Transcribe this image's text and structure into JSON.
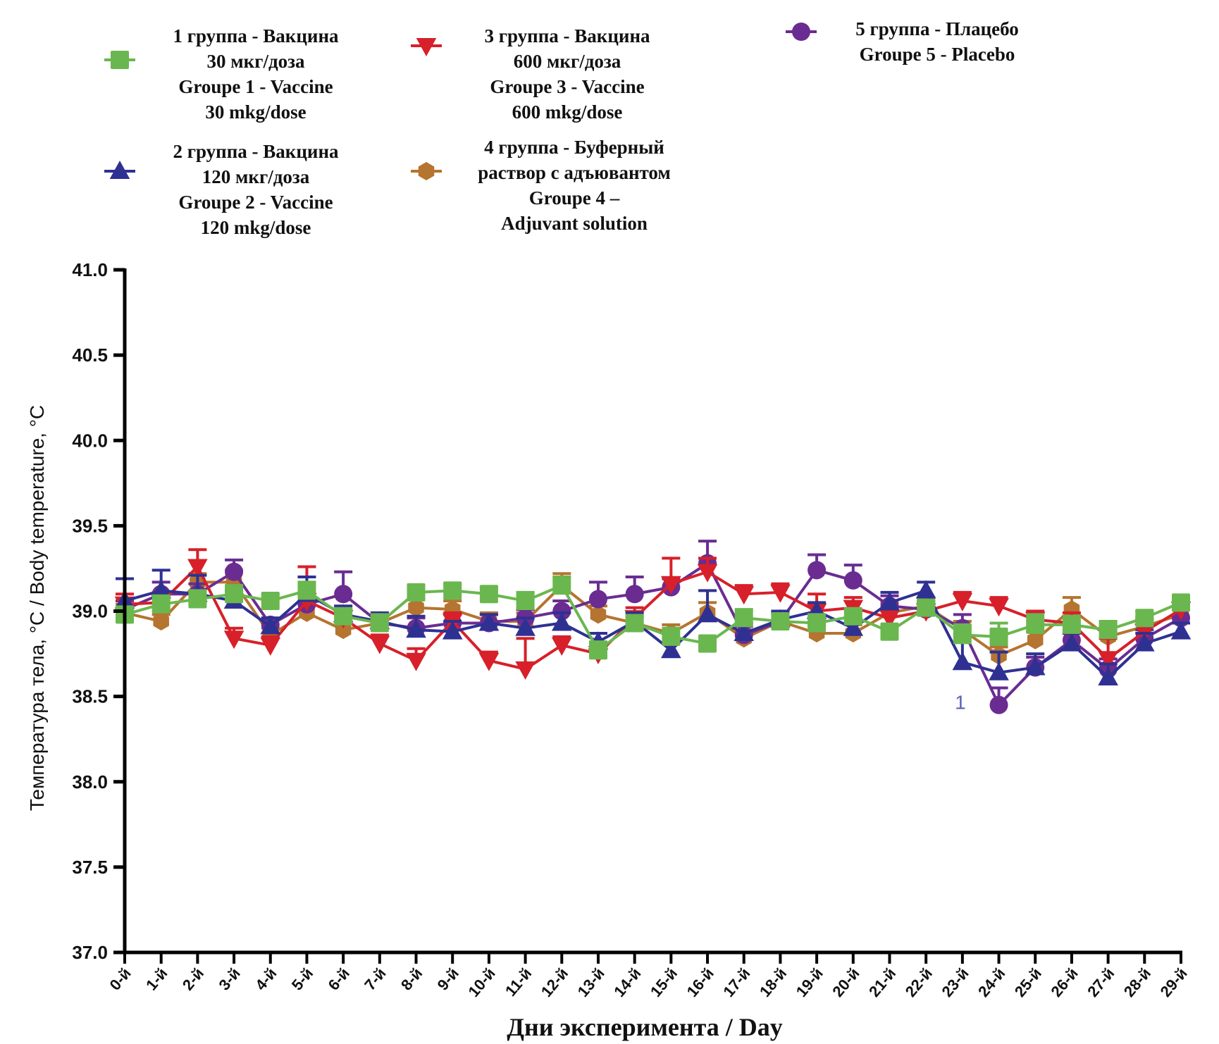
{
  "chart_data": {
    "type": "line",
    "title": "",
    "xlabel": "Дни эксперимента / Day",
    "ylabel": "Температура тела, °C / Body temperature, °C",
    "ylim": [
      37.0,
      41.0
    ],
    "yticks": [
      "37.0",
      "37.5",
      "38.0",
      "38.5",
      "39.0",
      "39.5",
      "40.0",
      "40.5",
      "41.0"
    ],
    "ytick_values": [
      37.0,
      37.5,
      38.0,
      38.5,
      39.0,
      39.5,
      40.0,
      40.5,
      41.0
    ],
    "categories": [
      "0-й",
      "1-й",
      "2-й",
      "3-й",
      "4-й",
      "5-й",
      "6-й",
      "7-й",
      "8-й",
      "9-й",
      "10-й",
      "11-й",
      "12-й",
      "13-й",
      "14-й",
      "15-й",
      "16-й",
      "17-й",
      "18-й",
      "19-й",
      "20-й",
      "21-й",
      "22-й",
      "23-й",
      "24-й",
      "25-й",
      "26-й",
      "27-й",
      "28-й",
      "29-й"
    ],
    "grid": false,
    "legend_position": "top",
    "annotations": [
      {
        "text": "1",
        "day_index": 23,
        "value": 38.45,
        "color": "#5b63b8"
      }
    ],
    "series": [
      {
        "name": "1 группа - Вакцина 30 мкг/доза / Groupe 1 - Vaccine 30 mkg/dose",
        "legend_lines": [
          "1 группа - Вакцина",
          "30 мкг/доза",
          "Groupe 1 - Vaccine",
          "30 mkg/dose"
        ],
        "color": "#6ab74f",
        "marker": "square",
        "values": [
          38.98,
          39.04,
          39.07,
          39.1,
          39.06,
          39.12,
          38.97,
          38.93,
          39.11,
          39.12,
          39.1,
          39.06,
          39.15,
          38.77,
          38.93,
          38.85,
          38.81,
          38.96,
          38.94,
          38.93,
          38.97,
          38.88,
          39.02,
          38.86,
          38.85,
          38.92,
          38.92,
          38.89,
          38.96,
          39.05
        ],
        "errors": [
          0.04,
          0.05,
          0.05,
          0.05,
          0.04,
          0.05,
          0.04,
          0.05,
          0.04,
          0.04,
          0.04,
          0.05,
          0.05,
          0.05,
          0.04,
          0.05,
          0.04,
          0.05,
          0.04,
          0.05,
          0.04,
          0.04,
          0.04,
          0.06,
          0.08,
          0.06,
          0.05,
          0.05,
          0.04,
          0.04
        ]
      },
      {
        "name": "2 группа - Вакцина 120 мкг/доза / Groupe 2 - Vaccine 120 mkg/dose",
        "legend_lines": [
          "2 группа - Вакцина",
          "120 мкг/доза",
          "Groupe 2 - Vaccine",
          "120 mkg/dose"
        ],
        "color": "#2e3192",
        "marker": "triangle-up",
        "values": [
          39.06,
          39.12,
          39.1,
          39.06,
          38.91,
          39.1,
          38.98,
          38.94,
          38.89,
          38.88,
          38.93,
          38.9,
          38.93,
          38.82,
          38.94,
          38.77,
          38.98,
          38.87,
          38.95,
          39.0,
          38.9,
          39.05,
          39.12,
          38.7,
          38.64,
          38.67,
          38.81,
          38.61,
          38.81,
          38.88
        ],
        "errors": [
          0.13,
          0.12,
          0.11,
          0.06,
          0.05,
          0.1,
          0.05,
          0.05,
          0.08,
          0.06,
          0.05,
          0.06,
          0.06,
          0.05,
          0.05,
          0.04,
          0.14,
          0.06,
          0.05,
          0.05,
          0.05,
          0.06,
          0.05,
          0.16,
          0.12,
          0.08,
          0.06,
          0.08,
          0.06,
          0.05
        ]
      },
      {
        "name": "3 группа - Вакцина 600 мкг/доза / Groupe 3 - Vaccine 600 mkg/dose",
        "legend_lines": [
          "3 группа - Вакцина",
          "600 мкг/доза",
          "Groupe 3 - Vaccine",
          "600 mkg/dose"
        ],
        "color": "#d7202a",
        "marker": "triangle-down",
        "values": [
          39.04,
          39.05,
          39.26,
          38.84,
          38.8,
          39.06,
          38.96,
          38.81,
          38.71,
          38.94,
          38.71,
          38.66,
          38.8,
          38.75,
          38.96,
          39.16,
          39.23,
          39.1,
          39.11,
          39.0,
          39.02,
          38.96,
          39.0,
          39.06,
          39.03,
          38.95,
          38.93,
          38.72,
          38.88,
          39.01
        ],
        "errors": [
          0.06,
          0.06,
          0.1,
          0.06,
          0.05,
          0.2,
          0.05,
          0.05,
          0.07,
          0.05,
          0.05,
          0.18,
          0.05,
          0.05,
          0.06,
          0.15,
          0.08,
          0.05,
          0.05,
          0.1,
          0.06,
          0.05,
          0.05,
          0.05,
          0.05,
          0.05,
          0.06,
          0.12,
          0.07,
          0.06
        ]
      },
      {
        "name": "4 группа - Буферный раствор с адъювантом / Groupe 4 – Adjuvant solution",
        "legend_lines": [
          "4 группа - Буферный",
          "раствор с адъювантом",
          "Groupe 4 –",
          "Adjuvant solution"
        ],
        "color": "#b5742f",
        "marker": "hexagon",
        "values": [
          38.99,
          38.94,
          39.17,
          39.17,
          38.86,
          38.99,
          38.89,
          38.93,
          39.02,
          39.01,
          38.94,
          38.94,
          39.15,
          38.98,
          38.93,
          38.87,
          38.99,
          38.84,
          38.94,
          38.87,
          38.87,
          38.99,
          39.03,
          38.89,
          38.74,
          38.83,
          39.01,
          38.85,
          38.91,
          38.98
        ],
        "errors": [
          0.05,
          0.04,
          0.05,
          0.07,
          0.04,
          0.05,
          0.05,
          0.05,
          0.05,
          0.05,
          0.05,
          0.05,
          0.07,
          0.05,
          0.04,
          0.05,
          0.06,
          0.05,
          0.05,
          0.05,
          0.05,
          0.06,
          0.05,
          0.05,
          0.05,
          0.05,
          0.07,
          0.06,
          0.05,
          0.05
        ]
      },
      {
        "name": "5 группа - Плацебо / Groupe 5 - Placebo",
        "legend_lines": [
          "5 группа - Плацебо",
          "Groupe 5 - Placebo"
        ],
        "color": "#6a2c91",
        "marker": "circle",
        "values": [
          39.01,
          39.1,
          39.1,
          39.23,
          38.92,
          39.04,
          39.1,
          38.93,
          38.9,
          38.93,
          38.93,
          38.96,
          39.0,
          39.07,
          39.1,
          39.14,
          39.28,
          38.86,
          38.94,
          39.24,
          39.18,
          39.03,
          39.01,
          38.9,
          38.45,
          38.67,
          38.83,
          38.66,
          38.84,
          38.96
        ],
        "errors": [
          0.05,
          0.07,
          0.06,
          0.07,
          0.04,
          0.06,
          0.13,
          0.05,
          0.06,
          0.05,
          0.05,
          0.05,
          0.06,
          0.1,
          0.1,
          0.05,
          0.13,
          0.05,
          0.05,
          0.09,
          0.09,
          0.06,
          0.05,
          0.08,
          0.1,
          0.06,
          0.06,
          0.06,
          0.05,
          0.05
        ]
      }
    ]
  }
}
